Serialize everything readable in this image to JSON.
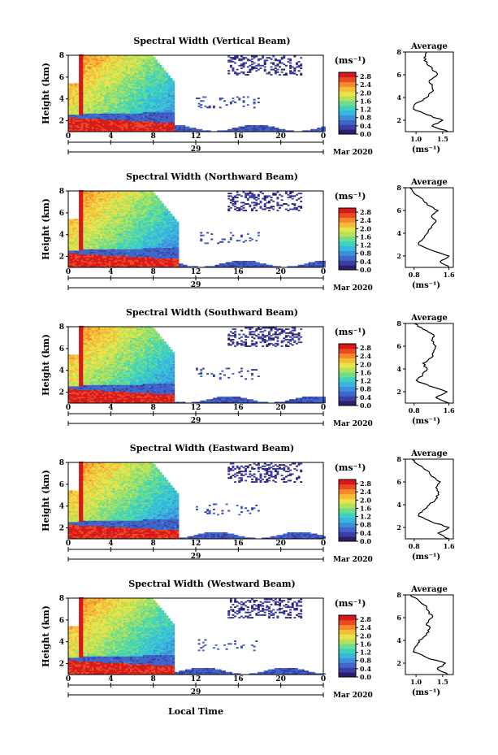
{
  "figure": {
    "xlabel": "Local Time",
    "date_label": "Mar 2020",
    "day_label": "29",
    "x_ticks": [
      "0",
      "4",
      "8",
      "12",
      "16",
      "20",
      "0"
    ],
    "y_ticks": [
      "2",
      "4",
      "6",
      "8"
    ],
    "ylabel": "Height (km)",
    "colorbar_unit": "(ms⁻¹)",
    "avg_title": "Average",
    "avg_unit": "(ms⁻¹)"
  },
  "colors": {
    "palette": [
      "#2b1f6b",
      "#3b3fa5",
      "#3f66c8",
      "#3e8fd8",
      "#38b6df",
      "#3ed1c0",
      "#6fdc8c",
      "#b3e25d",
      "#e8e34a",
      "#f7bb3a",
      "#f58a2c",
      "#ec4a24",
      "#d7191c"
    ],
    "gap": "#ffffff"
  },
  "chart_data": [
    {
      "type": "heatmap",
      "title": "Spectral Width (Vertical Beam)",
      "x_range_hours": [
        0,
        24
      ],
      "y_range_km": [
        1,
        8
      ],
      "colorbar": {
        "ticks": [
          "0.0",
          "0.4",
          "0.8",
          "1.2",
          "1.6",
          "2.0",
          "2.4",
          "2.8"
        ],
        "range": [
          0,
          3
        ]
      },
      "average_profile": {
        "x_ticks": [
          "1.0",
          "1.5"
        ],
        "x_range": [
          0.8,
          1.7
        ],
        "y_ticks": [
          "2",
          "4",
          "6",
          "8"
        ],
        "height_km": [
          1.0,
          1.5,
          2.0,
          2.5,
          3.0,
          3.5,
          4.0,
          4.5,
          5.0,
          5.5,
          6.0,
          6.5,
          7.0,
          7.5,
          8.0
        ],
        "value": [
          1.6,
          1.3,
          1.5,
          1.2,
          0.95,
          1.0,
          1.2,
          1.3,
          1.3,
          1.25,
          1.4,
          1.3,
          1.2,
          1.15,
          1.2
        ]
      }
    },
    {
      "type": "heatmap",
      "title": "Spectral Width (Northward Beam)",
      "x_range_hours": [
        0,
        24
      ],
      "y_range_km": [
        1,
        8
      ],
      "colorbar": {
        "ticks": [
          "0.0",
          "0.4",
          "0.8",
          "1.2",
          "1.6",
          "2.0",
          "2.4",
          "2.8"
        ],
        "range": [
          0,
          3
        ]
      },
      "average_profile": {
        "x_ticks": [
          "0.8",
          "1.6"
        ],
        "x_range": [
          0.6,
          1.7
        ],
        "y_ticks": [
          "2",
          "4",
          "6",
          "8"
        ],
        "height_km": [
          1.0,
          1.5,
          2.0,
          2.5,
          3.0,
          3.5,
          4.0,
          4.5,
          5.0,
          5.5,
          6.0,
          6.5,
          7.0,
          7.5,
          8.0
        ],
        "value": [
          1.6,
          1.4,
          1.6,
          1.2,
          0.9,
          1.0,
          1.1,
          1.2,
          1.3,
          1.2,
          1.35,
          1.1,
          1.0,
          0.8,
          0.7
        ]
      }
    },
    {
      "type": "heatmap",
      "title": "Spectral Width (Southward Beam)",
      "x_range_hours": [
        0,
        24
      ],
      "y_range_km": [
        1,
        8
      ],
      "colorbar": {
        "ticks": [
          "0.0",
          "0.4",
          "0.8",
          "1.2",
          "1.6",
          "2.0",
          "2.4",
          "2.8"
        ],
        "range": [
          0,
          3
        ]
      },
      "average_profile": {
        "x_ticks": [
          "0.8",
          "1.6"
        ],
        "x_range": [
          0.6,
          1.7
        ],
        "y_ticks": [
          "2",
          "4",
          "6",
          "8"
        ],
        "height_km": [
          1.0,
          1.5,
          2.0,
          2.5,
          3.0,
          3.5,
          4.0,
          4.5,
          5.0,
          5.5,
          6.0,
          6.5,
          7.0,
          7.5,
          8.0
        ],
        "value": [
          1.6,
          1.3,
          1.55,
          1.15,
          0.85,
          1.0,
          1.1,
          1.0,
          1.2,
          1.25,
          1.3,
          1.2,
          1.25,
          1.0,
          0.8
        ]
      }
    },
    {
      "type": "heatmap",
      "title": "Spectral Width (Eastward Beam)",
      "x_range_hours": [
        0,
        24
      ],
      "y_range_km": [
        1,
        8
      ],
      "colorbar": {
        "ticks": [
          "0.0",
          "0.4",
          "0.8",
          "1.2",
          "1.6",
          "2.0",
          "2.4",
          "2.8"
        ],
        "range": [
          0,
          3
        ]
      },
      "average_profile": {
        "x_ticks": [
          "0.8",
          "1.6"
        ],
        "x_range": [
          0.6,
          1.7
        ],
        "y_ticks": [
          "2",
          "4",
          "6",
          "8"
        ],
        "height_km": [
          1.0,
          1.5,
          2.0,
          2.5,
          3.0,
          3.5,
          4.0,
          4.5,
          5.0,
          5.5,
          6.0,
          6.5,
          7.0,
          7.5,
          8.0
        ],
        "value": [
          1.6,
          1.35,
          1.6,
          1.2,
          0.9,
          1.0,
          1.15,
          1.3,
          1.35,
          1.3,
          1.4,
          1.2,
          1.1,
          0.9,
          0.75
        ]
      }
    },
    {
      "type": "heatmap",
      "title": "Spectral Width (Westward Beam)",
      "x_range_hours": [
        0,
        24
      ],
      "y_range_km": [
        1,
        8
      ],
      "colorbar": {
        "ticks": [
          "0.0",
          "0.4",
          "0.8",
          "1.2",
          "1.6",
          "2.0",
          "2.4",
          "2.8"
        ],
        "range": [
          0,
          3
        ]
      },
      "average_profile": {
        "x_ticks": [
          "1.0",
          "1.5"
        ],
        "x_range": [
          0.8,
          1.7
        ],
        "y_ticks": [
          "2",
          "4",
          "6",
          "8"
        ],
        "height_km": [
          1.0,
          1.5,
          2.0,
          2.5,
          3.0,
          3.5,
          4.0,
          4.5,
          5.0,
          5.5,
          6.0,
          6.5,
          7.0,
          7.5,
          8.0
        ],
        "value": [
          1.6,
          1.4,
          1.55,
          1.2,
          0.95,
          1.0,
          1.05,
          1.2,
          1.25,
          1.2,
          1.3,
          1.25,
          1.2,
          1.05,
          0.9
        ]
      }
    }
  ]
}
